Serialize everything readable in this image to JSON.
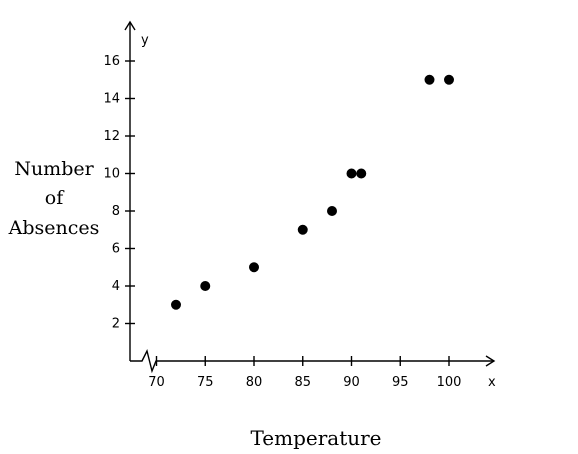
{
  "chart_data": {
    "type": "scatter",
    "title": "",
    "xlabel": "Temperature",
    "ylabel_lines": [
      "Number",
      "of",
      "Absences"
    ],
    "x_axis_letter": "x",
    "y_axis_letter": "y",
    "x_ticks": [
      "70",
      "75",
      "80",
      "85",
      "90",
      "95",
      "100"
    ],
    "y_ticks": [
      "2",
      "4",
      "6",
      "8",
      "10",
      "12",
      "14",
      "16"
    ],
    "xlim": [
      70,
      100
    ],
    "ylim": [
      0,
      16
    ],
    "x_axis_break": true,
    "grid": false,
    "points": [
      {
        "x": 72,
        "y": 3
      },
      {
        "x": 75,
        "y": 4
      },
      {
        "x": 80,
        "y": 5
      },
      {
        "x": 85,
        "y": 7
      },
      {
        "x": 88,
        "y": 8
      },
      {
        "x": 90,
        "y": 10
      },
      {
        "x": 91,
        "y": 10
      },
      {
        "x": 98,
        "y": 15
      },
      {
        "x": 100,
        "y": 15
      }
    ]
  }
}
